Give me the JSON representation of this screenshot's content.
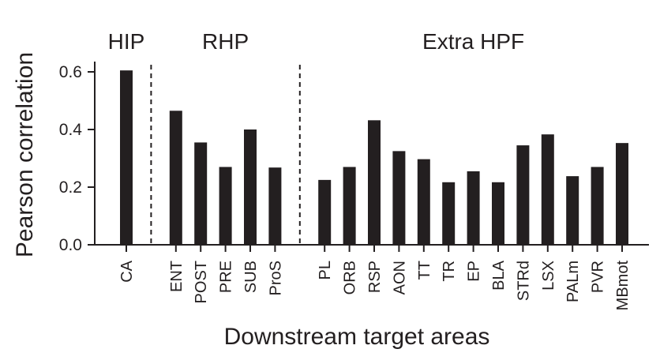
{
  "chart_data": {
    "type": "bar",
    "ylabel": "Pearson correlation",
    "xlabel": "Downstream target areas",
    "ylim": [
      0,
      0.63
    ],
    "yticks": [
      0.0,
      0.2,
      0.4,
      0.6
    ],
    "ytick_labels": [
      "0.0",
      "0.2",
      "0.4",
      "0.6"
    ],
    "color": "#231f20",
    "grid": false,
    "groups": [
      {
        "label": "HIP",
        "categories": [
          "CA"
        ],
        "values": [
          0.605
        ]
      },
      {
        "label": "RHP",
        "categories": [
          "ENT",
          "POST",
          "PRE",
          "SUB",
          "ProS"
        ],
        "values": [
          0.465,
          0.355,
          0.27,
          0.4,
          0.268
        ]
      },
      {
        "label": "Extra HPF",
        "categories": [
          "PL",
          "ORB",
          "RSP",
          "AON",
          "TT",
          "TR",
          "EP",
          "BLA",
          "STRd",
          "LSX",
          "PALm",
          "PVR",
          "MBmot"
        ],
        "values": [
          0.225,
          0.27,
          0.432,
          0.325,
          0.297,
          0.217,
          0.255,
          0.217,
          0.345,
          0.383,
          0.238,
          0.27,
          0.353
        ]
      }
    ]
  }
}
